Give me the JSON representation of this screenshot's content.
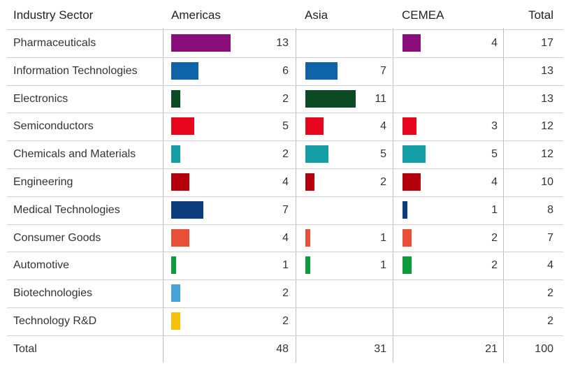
{
  "chart_data": {
    "type": "table",
    "columns": [
      "Industry Sector",
      "Americas",
      "Asia",
      "CEMEA",
      "Total"
    ],
    "rows": [
      {
        "sector": "Pharmaceuticals",
        "americas": 13,
        "asia": null,
        "cemea": 4,
        "total": 17,
        "color": "#8a0f7d"
      },
      {
        "sector": "Information Technologies",
        "americas": 6,
        "asia": 7,
        "cemea": null,
        "total": 13,
        "color": "#0f63a8"
      },
      {
        "sector": "Electronics",
        "americas": 2,
        "asia": 11,
        "cemea": null,
        "total": 13,
        "color": "#0b4a23"
      },
      {
        "sector": "Semiconductors",
        "americas": 5,
        "asia": 4,
        "cemea": 3,
        "total": 12,
        "color": "#e8061f"
      },
      {
        "sector": "Chemicals and Materials",
        "americas": 2,
        "asia": 5,
        "cemea": 5,
        "total": 12,
        "color": "#149ea6"
      },
      {
        "sector": "Engineering",
        "americas": 4,
        "asia": 2,
        "cemea": 4,
        "total": 10,
        "color": "#b3000b"
      },
      {
        "sector": "Medical Technologies",
        "americas": 7,
        "asia": null,
        "cemea": 1,
        "total": 8,
        "color": "#0b3c7e"
      },
      {
        "sector": "Consumer Goods",
        "americas": 4,
        "asia": 1,
        "cemea": 2,
        "total": 7,
        "color": "#e84f36"
      },
      {
        "sector": "Automotive",
        "americas": 1,
        "asia": 1,
        "cemea": 2,
        "total": 4,
        "color": "#0d9b3b"
      },
      {
        "sector": "Biotechnologies",
        "americas": 2,
        "asia": null,
        "cemea": null,
        "total": 2,
        "color": "#4aa3d8"
      },
      {
        "sector": "Technology R&D",
        "americas": 2,
        "asia": null,
        "cemea": null,
        "total": 2,
        "color": "#f7c10a"
      }
    ],
    "totals": {
      "label": "Total",
      "americas": 48,
      "asia": 31,
      "cemea": 21,
      "total": 100
    }
  }
}
